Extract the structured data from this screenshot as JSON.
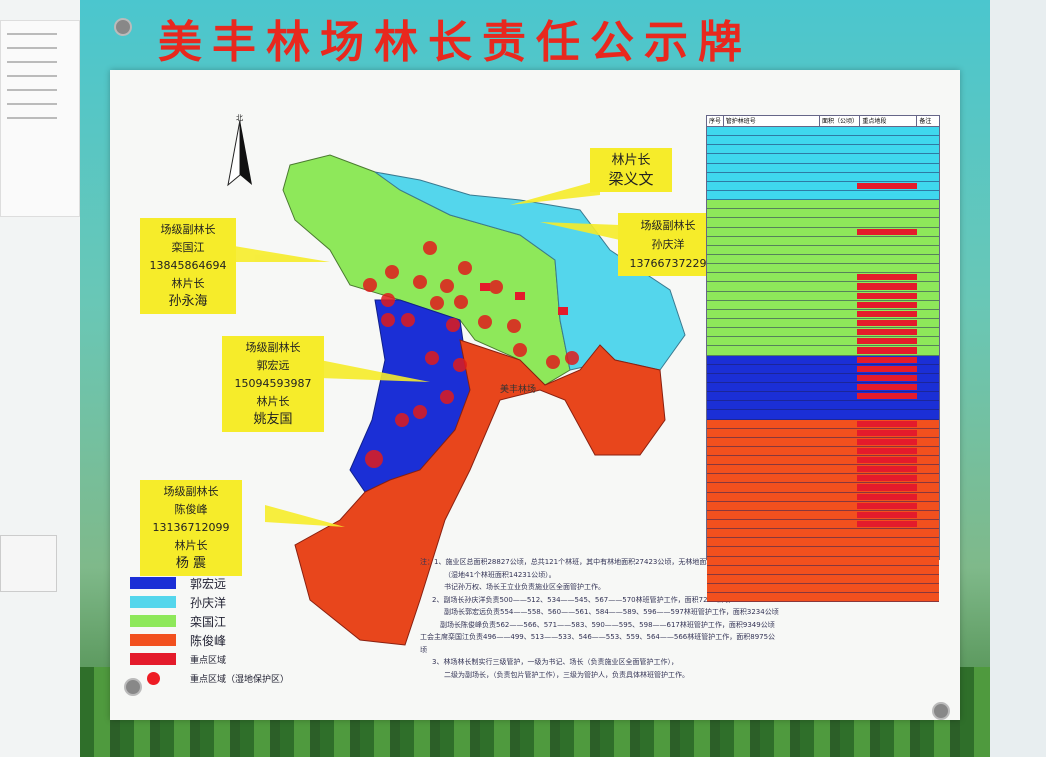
{
  "title": "美丰林场林长责任公示牌",
  "north_arrow": "北",
  "labels": [
    {
      "role": "林片长",
      "name": "梁义文"
    },
    {
      "role": "场级副林长",
      "name": "孙庆洋13766737229"
    },
    {
      "role": "场级副林长",
      "name": "栾国江13845864694",
      "role2": "林片长",
      "name2": "孙永海"
    },
    {
      "role": "场级副林长",
      "name": "郭宏远15094593987",
      "role2": "林片长",
      "name2": "姚友国"
    },
    {
      "role": "场级副林长",
      "name": "陈俊峰13136712099",
      "role2": "林片长",
      "name2": "杨 震"
    }
  ],
  "legend": [
    {
      "label": "郭宏远",
      "color": "#1b2fd6"
    },
    {
      "label": "孙庆洋",
      "color": "#54d6ec"
    },
    {
      "label": "栾国江",
      "color": "#8ee85a"
    },
    {
      "label": "陈俊峰",
      "color": "#f2501e"
    },
    {
      "label": "重点区域",
      "color": "#e41b2b"
    },
    {
      "label": "重点区域（湿地保护区）",
      "color": "#ee1c24",
      "shape": "circle"
    }
  ],
  "notes": [
    "注：1、施业区总面积28827公顷，总共121个林班，其中有林地面积27423公顷，无林地面积460公顷。",
    "（湿地41个林班面积14231公顷）。",
    "书记孙万权、场长王立业负责施业区全面管护工作。",
    "2、副场长孙庆洋负责500——512、534——545、567——570林班管护工作，面积7269公顷",
    "副场长郭宏远负责554——558、560——561、584——589、596——597林班管护工作，面积3234公顷",
    "副场长陈俊峰负责562——566、571——583、590——595、598——617林班管护工作，面积9349公顷",
    "工会主席栾国江负责496——499、513——533、546——553、559、564——566林班管护工作，面积8975公顷",
    "3、林场林长制实行三级管护，一级为书记、场长（负责施业区全面管护工作），",
    "二级为副场长，（负责包片管护工作），三级为管护人，负责具体林班管护工作。"
  ],
  "table": {
    "headers": [
      "序号",
      "管护林班号",
      "面积（公顷）",
      "重点地段",
      "备注"
    ],
    "row_colors": [
      "#3fd8ee",
      "#8ee85a",
      "#1b2fd6",
      "#f2501e"
    ],
    "row_groups": [
      8,
      17,
      7,
      20
    ]
  },
  "map_center_label": "美丰林场"
}
